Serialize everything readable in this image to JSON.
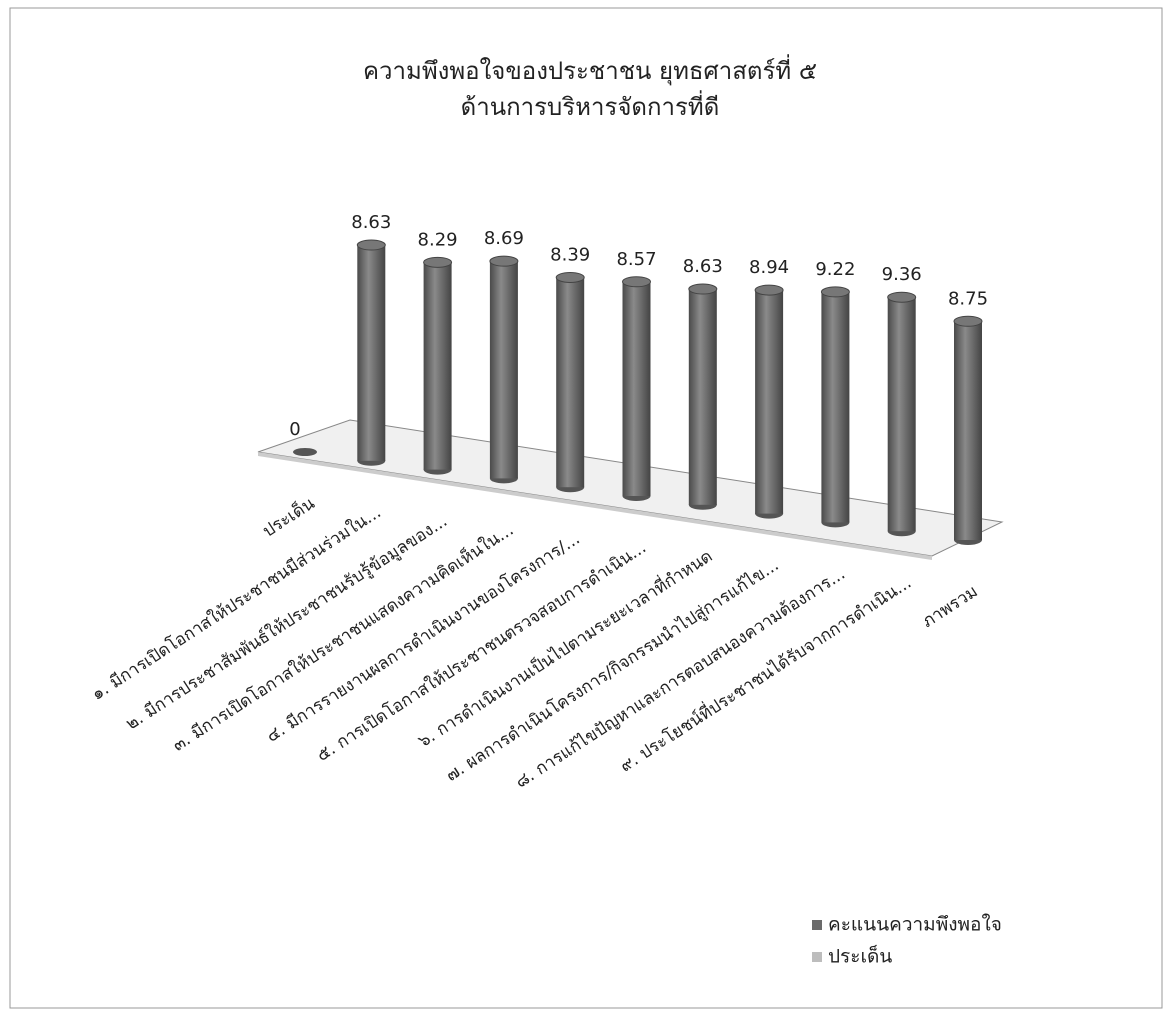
{
  "chart_data": {
    "type": "cylinder3d",
    "title": [
      "ความพึงพอใจของประชาชน ยุทธศาสตร์ที่ ๕",
      "ด้านการบริหารจัดการที่ดี"
    ],
    "categories": [
      "ประเด็น",
      "๑. มีการเปิดโอกาสให้ประชาชนมีส่วนร่วมใน...",
      "๒. มีการประชาสัมพันธ์ให้ประชาชนรับรู้ข้อมูลของ...",
      "๓. มีการเปิดโอกาสให้ประชาชนแสดงความคิดเห็นใน...",
      "๔. มีการรายงานผลการดำเนินงานของโครงการ/...",
      "๕. การเปิดโอกาสให้ประชาชนตรวจสอบการดำเนิน...",
      "๖. การดำเนินงานเป็นไปตามระยะเวลาที่กำหนด",
      "๗. ผลการดำเนินโครงการ/กิจกรรมนำไปสู่การแก้ไข...",
      "๘. การแก้ไขปัญหาและการตอบสนองความต้องการ...",
      "๙. ประโยชน์ที่ประชาชนได้รับจากการดำเนิน...",
      "ภาพรวม"
    ],
    "series": [
      {
        "name": "คะแนนความพึงพอใจ",
        "color": "#6b6b6b",
        "values": [
          0,
          8.63,
          8.29,
          8.69,
          8.39,
          8.57,
          8.63,
          8.94,
          9.22,
          9.36,
          8.75
        ]
      },
      {
        "name": "ประเด็น",
        "color": "#bdbdbd",
        "values": [
          null,
          null,
          null,
          null,
          null,
          null,
          null,
          null,
          null,
          null,
          null
        ]
      }
    ],
    "legend": "bottom-right"
  }
}
